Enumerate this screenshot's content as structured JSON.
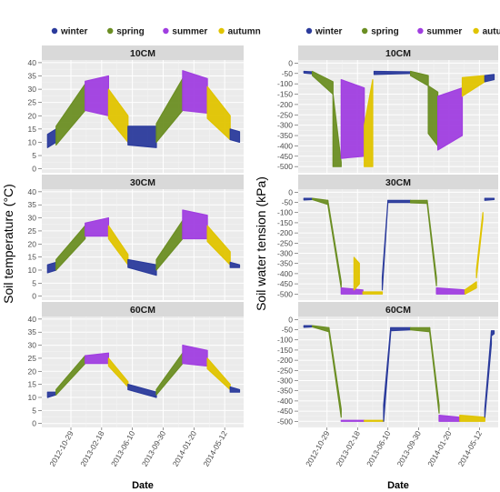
{
  "chart_data": [
    {
      "id": "a",
      "panel_letter": "a",
      "type": "scatter",
      "ylabel": "Soil temperature (°C)",
      "xlabel": "Date",
      "legend": [
        "winter",
        "spring",
        "summer",
        "autumn"
      ],
      "legend_position": "top",
      "colors": {
        "winter": "#2b3b9c",
        "spring": "#6b8e23",
        "summer": "#a03ee0",
        "autumn": "#e0c400"
      },
      "grid": true,
      "x_range": [
        "2012-07-15",
        "2014-07-20"
      ],
      "x_ticks": [
        "2012-10-29",
        "2013-02-18",
        "2013-06-10",
        "2013-09-30",
        "2014-01-20",
        "2014-05-12"
      ],
      "ylim": [
        -1.5,
        41
      ],
      "y_ticks": [
        0,
        5,
        10,
        15,
        20,
        25,
        30,
        35,
        40
      ],
      "facets": [
        {
          "label": "10CM",
          "segments": [
            {
              "season": "winter",
              "from": "2012-08-05",
              "to": "2012-09-05",
              "lo_from": 8,
              "lo_to": 10,
              "hi_from": 13,
              "hi_to": 15
            },
            {
              "season": "spring",
              "from": "2012-09-05",
              "to": "2012-12-20",
              "lo_from": 9,
              "lo_to": 22,
              "hi_from": 16,
              "hi_to": 32
            },
            {
              "season": "summer",
              "from": "2012-12-20",
              "to": "2013-03-15",
              "lo_from": 22,
              "lo_to": 20,
              "hi_from": 33,
              "hi_to": 35
            },
            {
              "season": "autumn",
              "from": "2013-03-15",
              "to": "2013-05-25",
              "lo_from": 19,
              "lo_to": 10,
              "hi_from": 30,
              "hi_to": 20
            },
            {
              "season": "winter",
              "from": "2013-05-25",
              "to": "2013-09-05",
              "lo_from": 9,
              "lo_to": 8,
              "hi_from": 16,
              "hi_to": 16
            },
            {
              "season": "spring",
              "from": "2013-09-05",
              "to": "2013-12-10",
              "lo_from": 10,
              "lo_to": 22,
              "hi_from": 17,
              "hi_to": 34
            },
            {
              "season": "summer",
              "from": "2013-12-10",
              "to": "2014-03-10",
              "lo_from": 22,
              "lo_to": 21,
              "hi_from": 37,
              "hi_to": 34
            },
            {
              "season": "autumn",
              "from": "2014-03-10",
              "to": "2014-06-01",
              "lo_from": 19,
              "lo_to": 11,
              "hi_from": 31,
              "hi_to": 20
            },
            {
              "season": "winter",
              "from": "2014-06-01",
              "to": "2014-07-05",
              "lo_from": 11,
              "lo_to": 10,
              "hi_from": 15,
              "hi_to": 14
            }
          ]
        },
        {
          "label": "30CM",
          "segments": [
            {
              "season": "winter",
              "from": "2012-08-05",
              "to": "2012-09-05",
              "lo_from": 9,
              "lo_to": 10,
              "hi_from": 12,
              "hi_to": 13
            },
            {
              "season": "spring",
              "from": "2012-09-05",
              "to": "2012-12-20",
              "lo_from": 10,
              "lo_to": 22,
              "hi_from": 14,
              "hi_to": 27
            },
            {
              "season": "summer",
              "from": "2012-12-20",
              "to": "2013-03-15",
              "lo_from": 23,
              "lo_to": 23,
              "hi_from": 28,
              "hi_to": 30
            },
            {
              "season": "autumn",
              "from": "2013-03-15",
              "to": "2013-05-25",
              "lo_from": 22,
              "lo_to": 12,
              "hi_from": 27,
              "hi_to": 16
            },
            {
              "season": "winter",
              "from": "2013-05-25",
              "to": "2013-09-05",
              "lo_from": 11,
              "lo_to": 8,
              "hi_from": 14,
              "hi_to": 12
            },
            {
              "season": "spring",
              "from": "2013-09-05",
              "to": "2013-12-10",
              "lo_from": 10,
              "lo_to": 22,
              "hi_from": 14,
              "hi_to": 29
            },
            {
              "season": "summer",
              "from": "2013-12-10",
              "to": "2014-03-10",
              "lo_from": 22,
              "lo_to": 22,
              "hi_from": 33,
              "hi_to": 31
            },
            {
              "season": "autumn",
              "from": "2014-03-10",
              "to": "2014-06-01",
              "lo_from": 21,
              "lo_to": 12,
              "hi_from": 27,
              "hi_to": 17
            },
            {
              "season": "winter",
              "from": "2014-06-01",
              "to": "2014-07-05",
              "lo_from": 11,
              "lo_to": 11,
              "hi_from": 13,
              "hi_to": 12
            }
          ]
        },
        {
          "label": "60CM",
          "segments": [
            {
              "season": "winter",
              "from": "2012-08-05",
              "to": "2012-09-05",
              "lo_from": 10,
              "lo_to": 11,
              "hi_from": 12,
              "hi_to": 12
            },
            {
              "season": "spring",
              "from": "2012-09-05",
              "to": "2012-12-20",
              "lo_from": 11,
              "lo_to": 23,
              "hi_from": 13,
              "hi_to": 26
            },
            {
              "season": "summer",
              "from": "2012-12-20",
              "to": "2013-03-15",
              "lo_from": 23,
              "lo_to": 23,
              "hi_from": 26,
              "hi_to": 27
            },
            {
              "season": "autumn",
              "from": "2013-03-15",
              "to": "2013-05-25",
              "lo_from": 22,
              "lo_to": 14,
              "hi_from": 25,
              "hi_to": 16
            },
            {
              "season": "winter",
              "from": "2013-05-25",
              "to": "2013-09-05",
              "lo_from": 13,
              "lo_to": 10,
              "hi_from": 15,
              "hi_to": 12
            },
            {
              "season": "spring",
              "from": "2013-09-05",
              "to": "2013-12-10",
              "lo_from": 11,
              "lo_to": 23,
              "hi_from": 13,
              "hi_to": 27
            },
            {
              "season": "summer",
              "from": "2013-12-10",
              "to": "2014-03-10",
              "lo_from": 23,
              "lo_to": 22,
              "hi_from": 30,
              "hi_to": 28
            },
            {
              "season": "autumn",
              "from": "2014-03-10",
              "to": "2014-06-01",
              "lo_from": 21,
              "lo_to": 13,
              "hi_from": 25,
              "hi_to": 15
            },
            {
              "season": "winter",
              "from": "2014-06-01",
              "to": "2014-07-05",
              "lo_from": 12,
              "lo_to": 12,
              "hi_from": 14,
              "hi_to": 13
            }
          ]
        }
      ]
    },
    {
      "id": "b",
      "panel_letter": "b",
      "type": "scatter",
      "ylabel": "Soil water tension (kPa)",
      "xlabel": "Date",
      "legend": [
        "winter",
        "spring",
        "summer",
        "autumn"
      ],
      "legend_position": "top",
      "colors": {
        "winter": "#2b3b9c",
        "spring": "#6b8e23",
        "summer": "#a03ee0",
        "autumn": "#e0c400"
      },
      "grid": true,
      "x_range": [
        "2012-07-15",
        "2014-07-20"
      ],
      "x_ticks": [
        "2012-10-29",
        "2013-02-18",
        "2013-06-10",
        "2013-09-30",
        "2014-01-20",
        "2014-05-12"
      ],
      "ylim": [
        -530,
        15
      ],
      "y_ticks": [
        0,
        -50,
        -100,
        -150,
        -200,
        -250,
        -300,
        -350,
        -400,
        -450,
        -500
      ],
      "facets": [
        {
          "label": "10CM",
          "segments": [
            {
              "season": "winter",
              "from": "2012-08-05",
              "to": "2012-09-05",
              "lo_from": -48,
              "lo_to": -52,
              "hi_from": -40,
              "hi_to": -42
            },
            {
              "season": "spring",
              "from": "2012-09-05",
              "to": "2012-11-20",
              "lo_from": -60,
              "lo_to": -150,
              "hi_from": -40,
              "hi_to": -90
            },
            {
              "season": "spring",
              "from": "2012-11-20",
              "to": "2012-12-20",
              "lo_from": -500,
              "lo_to": -500,
              "hi_from": -150,
              "hi_to": -480
            },
            {
              "season": "summer",
              "from": "2012-12-20",
              "to": "2013-03-15",
              "lo_from": -460,
              "lo_to": -450,
              "hi_from": -80,
              "hi_to": -120
            },
            {
              "season": "autumn",
              "from": "2013-03-15",
              "to": "2013-04-15",
              "lo_from": -500,
              "lo_to": -500,
              "hi_from": -300,
              "hi_to": -80
            },
            {
              "season": "winter",
              "from": "2013-04-20",
              "to": "2013-09-01",
              "lo_from": -55,
              "lo_to": -50,
              "hi_from": -40,
              "hi_to": -42
            },
            {
              "season": "spring",
              "from": "2013-09-01",
              "to": "2013-11-05",
              "lo_from": -60,
              "lo_to": -110,
              "hi_from": -40,
              "hi_to": -60
            },
            {
              "season": "spring",
              "from": "2013-11-05",
              "to": "2013-12-10",
              "lo_from": -340,
              "lo_to": -400,
              "hi_from": -110,
              "hi_to": -140
            },
            {
              "season": "summer",
              "from": "2013-12-10",
              "to": "2014-03-10",
              "lo_from": -420,
              "lo_to": -350,
              "hi_from": -160,
              "hi_to": -120
            },
            {
              "season": "autumn",
              "from": "2014-03-10",
              "to": "2014-06-01",
              "lo_from": -160,
              "lo_to": -90,
              "hi_from": -70,
              "hi_to": -60
            },
            {
              "season": "winter",
              "from": "2014-06-01",
              "to": "2014-07-05",
              "lo_from": -90,
              "lo_to": -80,
              "hi_from": -60,
              "hi_to": -55
            }
          ]
        },
        {
          "label": "30CM",
          "segments": [
            {
              "season": "winter",
              "from": "2012-08-05",
              "to": "2012-09-05",
              "lo_from": -38,
              "lo_to": -36,
              "hi_from": -30,
              "hi_to": -30
            },
            {
              "season": "spring",
              "from": "2012-09-05",
              "to": "2012-11-01",
              "lo_from": -36,
              "lo_to": -60,
              "hi_from": -30,
              "hi_to": -40
            },
            {
              "season": "spring",
              "from": "2012-11-01",
              "to": "2012-12-20",
              "lo_from": -60,
              "lo_to": -470,
              "hi_from": -40,
              "hi_to": -440
            },
            {
              "season": "summer",
              "from": "2012-12-20",
              "to": "2013-03-10",
              "lo_from": -500,
              "lo_to": -500,
              "hi_from": -470,
              "hi_to": -480
            },
            {
              "season": "autumn",
              "from": "2013-02-05",
              "to": "2013-02-25",
              "lo_from": -480,
              "lo_to": -450,
              "hi_from": -320,
              "hi_to": -350
            },
            {
              "season": "autumn",
              "from": "2013-03-10",
              "to": "2013-05-20",
              "lo_from": -500,
              "lo_to": -500,
              "hi_from": -490,
              "hi_to": -490
            },
            {
              "season": "winter",
              "from": "2013-05-20",
              "to": "2013-06-10",
              "lo_from": -480,
              "lo_to": -40,
              "hi_from": -420,
              "hi_to": -40
            },
            {
              "season": "winter",
              "from": "2013-06-10",
              "to": "2013-09-01",
              "lo_from": -50,
              "lo_to": -50,
              "hi_from": -40,
              "hi_to": -40
            },
            {
              "season": "spring",
              "from": "2013-09-01",
              "to": "2013-11-01",
              "lo_from": -52,
              "lo_to": -55,
              "hi_from": -40,
              "hi_to": -40
            },
            {
              "season": "spring",
              "from": "2013-11-01",
              "to": "2013-12-05",
              "lo_from": -55,
              "lo_to": -460,
              "hi_from": -40,
              "hi_to": -420
            },
            {
              "season": "summer",
              "from": "2013-12-05",
              "to": "2014-03-20",
              "lo_from": -500,
              "lo_to": -500,
              "hi_from": -470,
              "hi_to": -480
            },
            {
              "season": "autumn",
              "from": "2014-03-20",
              "to": "2014-05-01",
              "lo_from": -500,
              "lo_to": -470,
              "hi_from": -480,
              "hi_to": -440
            },
            {
              "season": "autumn",
              "from": "2014-05-01",
              "to": "2014-05-25",
              "lo_from": -420,
              "lo_to": -130,
              "hi_from": -380,
              "hi_to": -100
            },
            {
              "season": "winter",
              "from": "2014-06-01",
              "to": "2014-07-05",
              "lo_from": -40,
              "lo_to": -36,
              "hi_from": -30,
              "hi_to": -30
            }
          ]
        },
        {
          "label": "60CM",
          "segments": [
            {
              "season": "winter",
              "from": "2012-08-05",
              "to": "2012-09-05",
              "lo_from": -38,
              "lo_to": -36,
              "hi_from": -30,
              "hi_to": -30
            },
            {
              "season": "spring",
              "from": "2012-09-05",
              "to": "2012-11-05",
              "lo_from": -36,
              "lo_to": -60,
              "hi_from": -30,
              "hi_to": -40
            },
            {
              "season": "spring",
              "from": "2012-11-05",
              "to": "2012-12-20",
              "lo_from": -60,
              "lo_to": -480,
              "hi_from": -40,
              "hi_to": -440
            },
            {
              "season": "summer",
              "from": "2012-12-20",
              "to": "2013-03-15",
              "lo_from": -500,
              "lo_to": -500,
              "hi_from": -495,
              "hi_to": -495
            },
            {
              "season": "autumn",
              "from": "2013-03-15",
              "to": "2013-05-25",
              "lo_from": -500,
              "lo_to": -500,
              "hi_from": -495,
              "hi_to": -495
            },
            {
              "season": "winter",
              "from": "2013-05-25",
              "to": "2013-06-20",
              "lo_from": -500,
              "lo_to": -60,
              "hi_from": -420,
              "hi_to": -40
            },
            {
              "season": "winter",
              "from": "2013-06-20",
              "to": "2013-09-01",
              "lo_from": -55,
              "lo_to": -50,
              "hi_from": -40,
              "hi_to": -40
            },
            {
              "season": "spring",
              "from": "2013-09-01",
              "to": "2013-11-10",
              "lo_from": -50,
              "lo_to": -60,
              "hi_from": -40,
              "hi_to": -40
            },
            {
              "season": "spring",
              "from": "2013-11-10",
              "to": "2013-12-15",
              "lo_from": -60,
              "lo_to": -460,
              "hi_from": -40,
              "hi_to": -420
            },
            {
              "season": "summer",
              "from": "2013-12-15",
              "to": "2014-03-01",
              "lo_from": -500,
              "lo_to": -500,
              "hi_from": -470,
              "hi_to": -480
            },
            {
              "season": "autumn",
              "from": "2014-03-01",
              "to": "2014-06-01",
              "lo_from": -500,
              "lo_to": -500,
              "hi_from": -470,
              "hi_to": -480
            },
            {
              "season": "winter",
              "from": "2014-06-01",
              "to": "2014-06-25",
              "lo_from": -480,
              "lo_to": -120,
              "hi_from": -440,
              "hi_to": -60
            },
            {
              "season": "winter",
              "from": "2014-06-25",
              "to": "2014-07-05",
              "lo_from": -80,
              "lo_to": -70,
              "hi_from": -55,
              "hi_to": -55
            }
          ]
        }
      ]
    }
  ]
}
